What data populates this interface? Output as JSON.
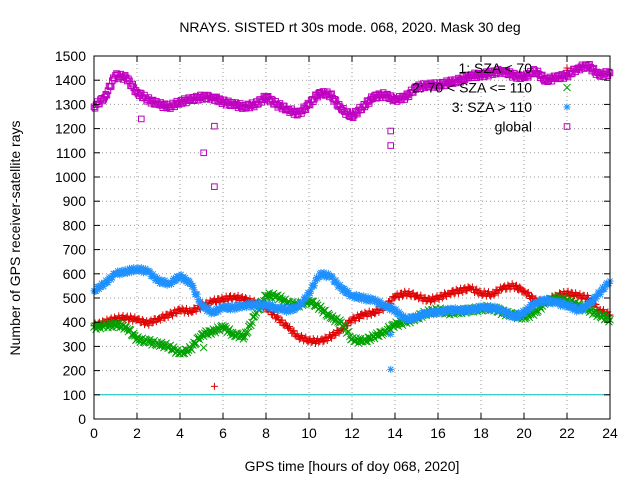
{
  "chart_data": {
    "type": "scatter",
    "title": "NRAYS. SISTED rt 30s mode. 068, 2020. Mask 30 deg",
    "xlabel": "GPS time [hours of doy 068, 2020]",
    "ylabel": "Number of GPS receiver-satellite rays",
    "xlim": [
      0,
      24
    ],
    "ylim": [
      0,
      1500
    ],
    "x_ticks": [
      0,
      2,
      4,
      6,
      8,
      10,
      12,
      14,
      16,
      18,
      20,
      22,
      24
    ],
    "y_ticks": [
      0,
      100,
      200,
      300,
      400,
      500,
      600,
      700,
      800,
      900,
      1000,
      1100,
      1200,
      1300,
      1400,
      1500
    ],
    "grid": true,
    "legend_position": "top-right",
    "reference_line": {
      "y": 100,
      "color": "#00c0c0"
    },
    "series": [
      {
        "name": "1: SZA < 70",
        "legend_label": "1: SZA < 70",
        "marker": "+",
        "color": "#e00000",
        "x": [
          0,
          0.5,
          1,
          1.5,
          2,
          2.5,
          3,
          3.5,
          4,
          4.5,
          5,
          5.5,
          6,
          6.5,
          7,
          7.5,
          8,
          8.5,
          9,
          9.5,
          10,
          10.5,
          11,
          11.5,
          12,
          12.5,
          13,
          13.5,
          14,
          14.5,
          15,
          15.5,
          16,
          16.5,
          17,
          17.5,
          18,
          18.5,
          19,
          19.5,
          20,
          20.5,
          21,
          21.5,
          22,
          22.5,
          23,
          23.5,
          24
        ],
        "y": [
          385,
          400,
          415,
          420,
          410,
          395,
          415,
          430,
          450,
          445,
          465,
          485,
          495,
          505,
          495,
          480,
          460,
          420,
          380,
          340,
          325,
          320,
          340,
          370,
          410,
          430,
          440,
          460,
          505,
          520,
          510,
          490,
          500,
          520,
          530,
          540,
          520,
          515,
          540,
          550,
          530,
          490,
          480,
          510,
          520,
          510,
          500,
          450,
          430
        ]
      },
      {
        "name": "2: 70 < SZA <= 110",
        "legend_label": "2: 70 < SZA <= 110",
        "marker": "x",
        "color": "#00a000",
        "x": [
          0,
          0.5,
          1,
          1.5,
          2,
          2.5,
          3,
          3.5,
          4,
          4.5,
          5,
          5.5,
          6,
          6.5,
          7,
          7.5,
          8,
          8.5,
          9,
          9.5,
          10,
          10.5,
          11,
          11.5,
          12,
          12.5,
          13,
          13.5,
          14,
          14.5,
          15,
          15.5,
          16,
          16.5,
          17,
          17.5,
          18,
          18.5,
          19,
          19.5,
          20,
          20.5,
          21,
          21.5,
          22,
          22.5,
          23,
          23.5,
          24
        ],
        "y": [
          380,
          385,
          390,
          380,
          330,
          320,
          310,
          300,
          270,
          290,
          350,
          360,
          380,
          350,
          340,
          430,
          510,
          510,
          480,
          470,
          490,
          460,
          420,
          400,
          330,
          320,
          340,
          360,
          390,
          400,
          420,
          440,
          450,
          440,
          445,
          450,
          455,
          460,
          440,
          430,
          420,
          440,
          480,
          500,
          490,
          470,
          450,
          430,
          410
        ]
      },
      {
        "name": "3: SZA > 110",
        "legend_label": "3: SZA > 110",
        "marker": "*",
        "color": "#1e90ff",
        "x": [
          0,
          0.5,
          1,
          1.5,
          2,
          2.5,
          3,
          3.5,
          4,
          4.5,
          5,
          5.5,
          6,
          6.5,
          7,
          7.5,
          8,
          8.5,
          9,
          9.5,
          10,
          10.5,
          11,
          11.5,
          12,
          12.5,
          13,
          13.5,
          14,
          14.5,
          15,
          15.5,
          16,
          16.5,
          17,
          17.5,
          18,
          18.5,
          19,
          19.5,
          20,
          20.5,
          21,
          21.5,
          22,
          22.5,
          23,
          23.5,
          24
        ],
        "y": [
          530,
          560,
          600,
          610,
          620,
          610,
          570,
          560,
          590,
          560,
          470,
          440,
          460,
          460,
          470,
          470,
          470,
          460,
          450,
          460,
          520,
          600,
          590,
          540,
          510,
          500,
          490,
          470,
          450,
          410,
          420,
          440,
          440,
          450,
          450,
          450,
          460,
          460,
          450,
          420,
          440,
          480,
          490,
          480,
          470,
          450,
          470,
          520,
          570
        ]
      },
      {
        "name": "global",
        "legend_label": "global",
        "marker": "square",
        "color": "#c000c0",
        "x": [
          0,
          0.5,
          1,
          1.5,
          2,
          2.5,
          3,
          3.5,
          4,
          4.5,
          5,
          5.5,
          6,
          6.5,
          7,
          7.5,
          8,
          8.5,
          9,
          9.5,
          10,
          10.5,
          11,
          11.5,
          12,
          12.5,
          13,
          13.5,
          14,
          14.5,
          15,
          15.5,
          16,
          16.5,
          17,
          17.5,
          18,
          18.5,
          19,
          19.5,
          20,
          20.5,
          21,
          21.5,
          22,
          22.5,
          23,
          23.5,
          24
        ],
        "y": [
          1290,
          1330,
          1420,
          1410,
          1350,
          1320,
          1300,
          1290,
          1310,
          1320,
          1330,
          1330,
          1310,
          1300,
          1290,
          1300,
          1330,
          1300,
          1280,
          1260,
          1300,
          1350,
          1340,
          1280,
          1250,
          1290,
          1330,
          1340,
          1320,
          1330,
          1370,
          1380,
          1380,
          1390,
          1400,
          1420,
          1420,
          1430,
          1440,
          1420,
          1410,
          1440,
          1400,
          1410,
          1420,
          1450,
          1460,
          1420,
          1430
        ]
      }
    ],
    "outliers": [
      {
        "series": "1: SZA < 70",
        "x": [
          5.6
        ],
        "y": [
          135
        ]
      },
      {
        "series": "2: 70 < SZA <= 110",
        "x": [
          5.1
        ],
        "y": [
          295
        ]
      },
      {
        "series": "3: SZA > 110",
        "x": [
          13.8,
          13.8
        ],
        "y": [
          205,
          350
        ]
      },
      {
        "series": "global",
        "x": [
          2.2,
          5.1,
          5.6,
          5.6,
          13.8,
          13.8
        ],
        "y": [
          1240,
          1100,
          960,
          1210,
          1130,
          1190
        ]
      }
    ]
  }
}
